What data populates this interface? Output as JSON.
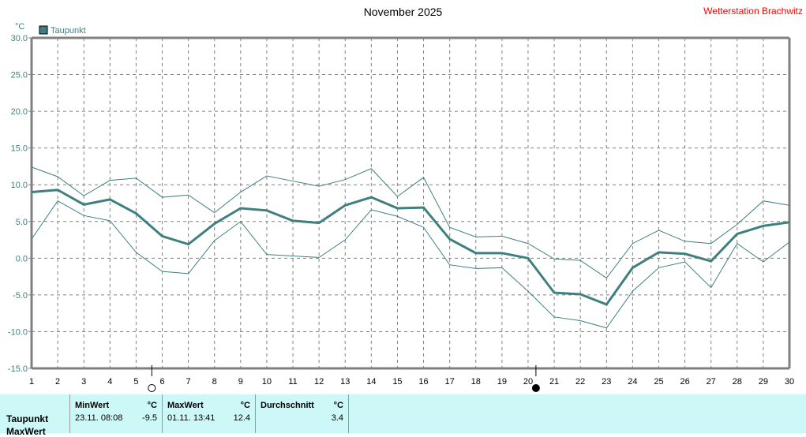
{
  "title": "November 2025",
  "station": "Wetterstation Brachwitz",
  "chart_data": {
    "type": "line",
    "ylabel": "°C",
    "ylim": [
      -15,
      30
    ],
    "yticks": [
      "30.0",
      "25.0",
      "20.0",
      "15.0",
      "10.0",
      "5.0",
      "0.0",
      "-5.0",
      "-10.0",
      "-15.0"
    ],
    "ytick_values": [
      30,
      25,
      20,
      15,
      10,
      5,
      0,
      -5,
      -10,
      -15
    ],
    "x": [
      1,
      2,
      3,
      4,
      5,
      6,
      7,
      8,
      9,
      10,
      11,
      12,
      13,
      14,
      15,
      16,
      17,
      18,
      19,
      20,
      21,
      22,
      23,
      24,
      25,
      26,
      27,
      28,
      29,
      30
    ],
    "grid": true,
    "legend": "top-left",
    "color": "#3f7f7f",
    "series": [
      {
        "name": "Taupunkt",
        "values": [
          9.0,
          9.3,
          7.3,
          8.0,
          6.1,
          3.0,
          1.9,
          4.7,
          6.8,
          6.5,
          5.1,
          4.8,
          7.2,
          8.3,
          6.8,
          6.9,
          2.6,
          0.7,
          0.7,
          0.0,
          -4.7,
          -4.9,
          -6.3,
          -1.3,
          0.8,
          0.6,
          -0.4,
          3.3,
          4.4,
          4.9
        ]
      },
      {
        "values": [
          12.4,
          11.1,
          8.5,
          10.6,
          10.9,
          8.3,
          8.6,
          6.2,
          9.0,
          11.2,
          10.5,
          9.8,
          10.7,
          12.2,
          8.4,
          11.0,
          4.2,
          2.9,
          3.0,
          2.0,
          -0.1,
          -0.3,
          -2.7,
          2.0,
          3.8,
          2.3,
          2.0,
          4.6,
          7.8,
          7.2
        ]
      },
      {
        "values": [
          2.6,
          7.8,
          5.8,
          5.1,
          0.8,
          -1.8,
          -2.1,
          2.4,
          5.0,
          0.5,
          0.3,
          0.1,
          2.5,
          6.6,
          5.7,
          4.2,
          -0.9,
          -1.4,
          -1.3,
          -4.5,
          -8.0,
          -8.5,
          -9.5,
          -4.5,
          -1.3,
          -0.5,
          -4.0,
          2.0,
          -0.5,
          2.2
        ]
      }
    ],
    "moon_phases": [
      {
        "phase": "full-moon",
        "day": 5.6
      },
      {
        "phase": "new-moon",
        "day": 20.3
      }
    ]
  },
  "summary": {
    "row_label": "Taupunkt",
    "row_label2": "MaxWert",
    "min": {
      "header": "MinWert",
      "unit": "°C",
      "date": "23.11.  08:08",
      "value": "-9.5"
    },
    "max": {
      "header": "MaxWert",
      "unit": "°C",
      "date": "01.11.  13:41",
      "value": "12.4"
    },
    "avg": {
      "header": "Durchschnitt",
      "unit": "°C",
      "value": "3.4"
    }
  }
}
